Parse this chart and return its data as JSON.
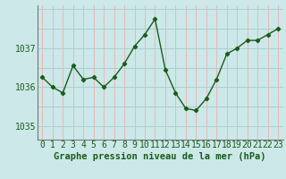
{
  "x": [
    0,
    1,
    2,
    3,
    4,
    5,
    6,
    7,
    8,
    9,
    10,
    11,
    12,
    13,
    14,
    15,
    16,
    17,
    18,
    19,
    20,
    21,
    22,
    23
  ],
  "y": [
    1036.25,
    1036.0,
    1035.85,
    1036.55,
    1036.2,
    1036.25,
    1036.0,
    1036.25,
    1036.6,
    1037.05,
    1037.35,
    1037.75,
    1036.45,
    1035.85,
    1035.45,
    1035.4,
    1035.7,
    1036.2,
    1036.85,
    1037.0,
    1037.2,
    1037.2,
    1037.35,
    1037.5
  ],
  "line_color": "#1a5c1a",
  "marker_color": "#1a5c1a",
  "bg_color": "#cce8e8",
  "vgrid_color": "#e8b8b8",
  "hgrid_color": "#aad0d0",
  "ylabel_ticks": [
    1035,
    1036,
    1037
  ],
  "xlabel": "Graphe pression niveau de la mer (hPa)",
  "xlabel_fontsize": 7.5,
  "tick_fontsize": 7,
  "ylim": [
    1034.65,
    1038.1
  ],
  "xlim": [
    -0.5,
    23.5
  ],
  "figsize": [
    3.2,
    2.0
  ],
  "dpi": 100
}
